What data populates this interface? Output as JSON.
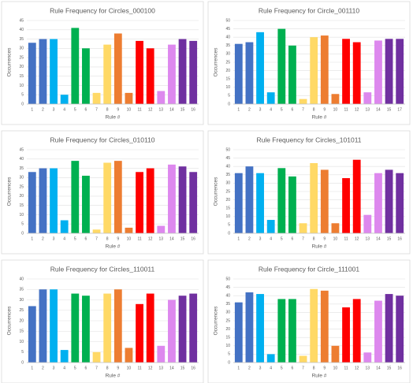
{
  "chart_data": [
    {
      "type": "bar",
      "title": "Rule Frequency for Circles_000100",
      "x_label": "Rule #",
      "y_label": "Occurrences",
      "categories": [
        "1",
        "2",
        "3",
        "4",
        "5",
        "6",
        "7",
        "8",
        "9",
        "10",
        "11",
        "12",
        "13",
        "14",
        "15",
        "16"
      ],
      "values": [
        33,
        35,
        35,
        5,
        41,
        30,
        6,
        32,
        38,
        6,
        34,
        30,
        7,
        32,
        35,
        34
      ],
      "colors": [
        "#4472c4",
        "#4472c4",
        "#00b0f0",
        "#00b0f0",
        "#00b050",
        "#00b050",
        "#ffd966",
        "#ffd966",
        "#ed7d31",
        "#ed7d31",
        "#ff0000",
        "#ff0000",
        "#dd88ee",
        "#dd88ee",
        "#7030a0",
        "#7030a0"
      ],
      "ylim": [
        0,
        45
      ],
      "yticks": [
        0,
        5,
        10,
        15,
        20,
        25,
        30,
        35,
        40,
        45
      ],
      "grid": true
    },
    {
      "type": "bar",
      "title": "Rule Frequency for Circle_001110",
      "x_label": "Rule #",
      "y_label": "Occurrences",
      "categories": [
        "1",
        "2",
        "3",
        "4",
        "5",
        "6",
        "7",
        "8",
        "9",
        "10",
        "11",
        "12",
        "13",
        "14",
        "15",
        "17"
      ],
      "values": [
        36,
        37,
        43,
        7,
        45,
        35,
        3,
        40,
        41,
        6,
        39,
        37,
        7,
        38,
        39,
        39
      ],
      "colors": [
        "#4472c4",
        "#4472c4",
        "#00b0f0",
        "#00b0f0",
        "#00b050",
        "#00b050",
        "#ffd966",
        "#ffd966",
        "#ed7d31",
        "#ed7d31",
        "#ff0000",
        "#ff0000",
        "#dd88ee",
        "#dd88ee",
        "#7030a0",
        "#7030a0"
      ],
      "ylim": [
        0,
        50
      ],
      "yticks": [
        0,
        5,
        10,
        15,
        20,
        25,
        30,
        35,
        40,
        45,
        50
      ],
      "grid": true
    },
    {
      "type": "bar",
      "title": "Rule Frequency for Circles_010110",
      "x_label": "Rule #",
      "y_label": "Occurrences",
      "categories": [
        "1",
        "2",
        "3",
        "4",
        "5",
        "6",
        "7",
        "8",
        "9",
        "10",
        "11",
        "12",
        "13",
        "14",
        "15",
        "16"
      ],
      "values": [
        33,
        35,
        35,
        7,
        39,
        31,
        2,
        38,
        39,
        3,
        33,
        35,
        4,
        37,
        36,
        33
      ],
      "colors": [
        "#4472c4",
        "#4472c4",
        "#00b0f0",
        "#00b0f0",
        "#00b050",
        "#00b050",
        "#ffd966",
        "#ffd966",
        "#ed7d31",
        "#ed7d31",
        "#ff0000",
        "#ff0000",
        "#dd88ee",
        "#dd88ee",
        "#7030a0",
        "#7030a0"
      ],
      "ylim": [
        0,
        45
      ],
      "yticks": [
        0,
        5,
        10,
        15,
        20,
        25,
        30,
        35,
        40,
        45
      ],
      "grid": true
    },
    {
      "type": "bar",
      "title": "Rule Frequency for Circles_101011",
      "x_label": "Rule #",
      "y_label": "Occurrences",
      "categories": [
        "1",
        "2",
        "3",
        "4",
        "5",
        "6",
        "7",
        "8",
        "9",
        "10",
        "11",
        "12",
        "13",
        "14",
        "15",
        "16"
      ],
      "values": [
        36,
        40,
        36,
        8,
        39,
        34,
        6,
        42,
        38,
        6,
        33,
        44,
        11,
        36,
        38,
        36
      ],
      "colors": [
        "#4472c4",
        "#4472c4",
        "#00b0f0",
        "#00b0f0",
        "#00b050",
        "#00b050",
        "#ffd966",
        "#ffd966",
        "#ed7d31",
        "#ed7d31",
        "#ff0000",
        "#ff0000",
        "#dd88ee",
        "#dd88ee",
        "#7030a0",
        "#7030a0"
      ],
      "ylim": [
        0,
        50
      ],
      "yticks": [
        0,
        5,
        10,
        15,
        20,
        25,
        30,
        35,
        40,
        45,
        50
      ],
      "grid": true
    },
    {
      "type": "bar",
      "title": "Rule Frequency for Circles_110011",
      "x_label": "Rule #",
      "y_label": "Occurrences",
      "categories": [
        "1",
        "2",
        "3",
        "4",
        "5",
        "6",
        "7",
        "8",
        "9",
        "10",
        "11",
        "12",
        "13",
        "14",
        "15",
        "16"
      ],
      "values": [
        27,
        35,
        35,
        6,
        33,
        32,
        5,
        33,
        35,
        7,
        28,
        33,
        8,
        30,
        32,
        33
      ],
      "colors": [
        "#4472c4",
        "#4472c4",
        "#00b0f0",
        "#00b0f0",
        "#00b050",
        "#00b050",
        "#ffd966",
        "#ffd966",
        "#ed7d31",
        "#ed7d31",
        "#ff0000",
        "#ff0000",
        "#dd88ee",
        "#dd88ee",
        "#7030a0",
        "#7030a0"
      ],
      "ylim": [
        0,
        40
      ],
      "yticks": [
        0,
        5,
        10,
        15,
        20,
        25,
        30,
        35,
        40
      ],
      "grid": true
    },
    {
      "type": "bar",
      "title": "Rule Frequency for Circle_111001",
      "x_label": "Rule #",
      "y_label": "Occurrences",
      "categories": [
        "1",
        "2",
        "3",
        "4",
        "5",
        "6",
        "7",
        "8",
        "9",
        "10",
        "11",
        "12",
        "13",
        "14",
        "15",
        "16"
      ],
      "values": [
        36,
        42,
        41,
        5,
        38,
        38,
        4,
        44,
        43,
        10,
        33,
        38,
        6,
        37,
        41,
        40
      ],
      "colors": [
        "#4472c4",
        "#4472c4",
        "#00b0f0",
        "#00b0f0",
        "#00b050",
        "#00b050",
        "#ffd966",
        "#ffd966",
        "#ed7d31",
        "#ed7d31",
        "#ff0000",
        "#ff0000",
        "#dd88ee",
        "#dd88ee",
        "#7030a0",
        "#7030a0"
      ],
      "ylim": [
        0,
        50
      ],
      "yticks": [
        0,
        5,
        10,
        15,
        20,
        25,
        30,
        35,
        40,
        45,
        50
      ],
      "grid": true
    }
  ]
}
